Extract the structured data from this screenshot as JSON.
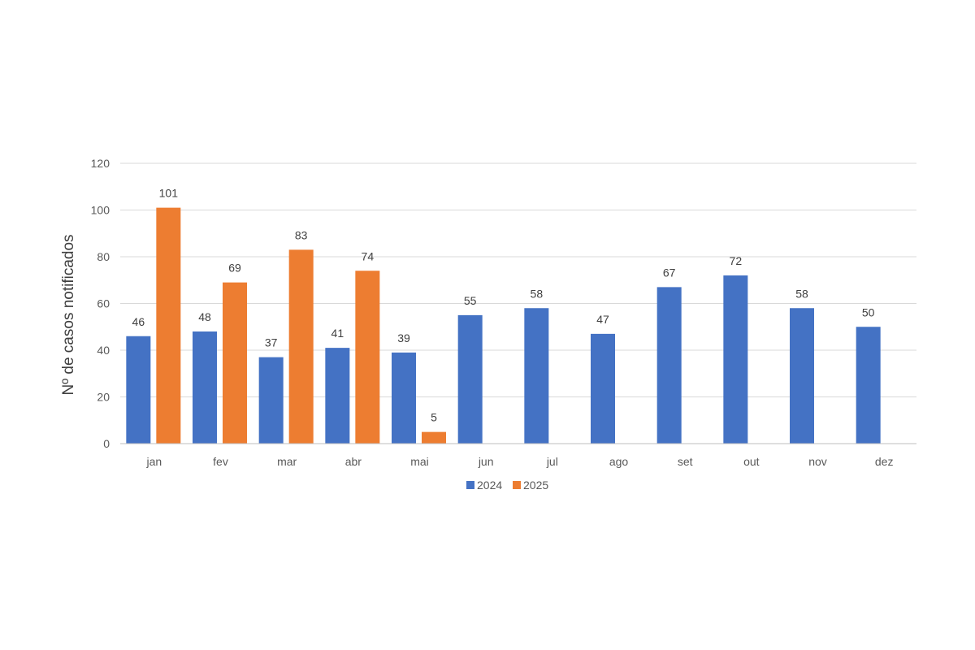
{
  "chart_data": {
    "type": "bar",
    "title": "",
    "xlabel": "",
    "ylabel": "Nº de casos notificados",
    "ylim": [
      0,
      120
    ],
    "yticks": [
      0,
      20,
      40,
      60,
      80,
      100,
      120
    ],
    "grid": true,
    "legend_position": "bottom",
    "categories": [
      "jan",
      "fev",
      "mar",
      "abr",
      "mai",
      "jun",
      "jul",
      "ago",
      "set",
      "out",
      "nov",
      "dez"
    ],
    "series": [
      {
        "name": "2024",
        "color": "#4472C4",
        "values": [
          46,
          48,
          37,
          41,
          39,
          55,
          58,
          47,
          67,
          72,
          58,
          50
        ]
      },
      {
        "name": "2025",
        "color": "#ED7D31",
        "values": [
          101,
          69,
          83,
          74,
          5,
          null,
          null,
          null,
          null,
          null,
          null,
          null
        ]
      }
    ]
  }
}
